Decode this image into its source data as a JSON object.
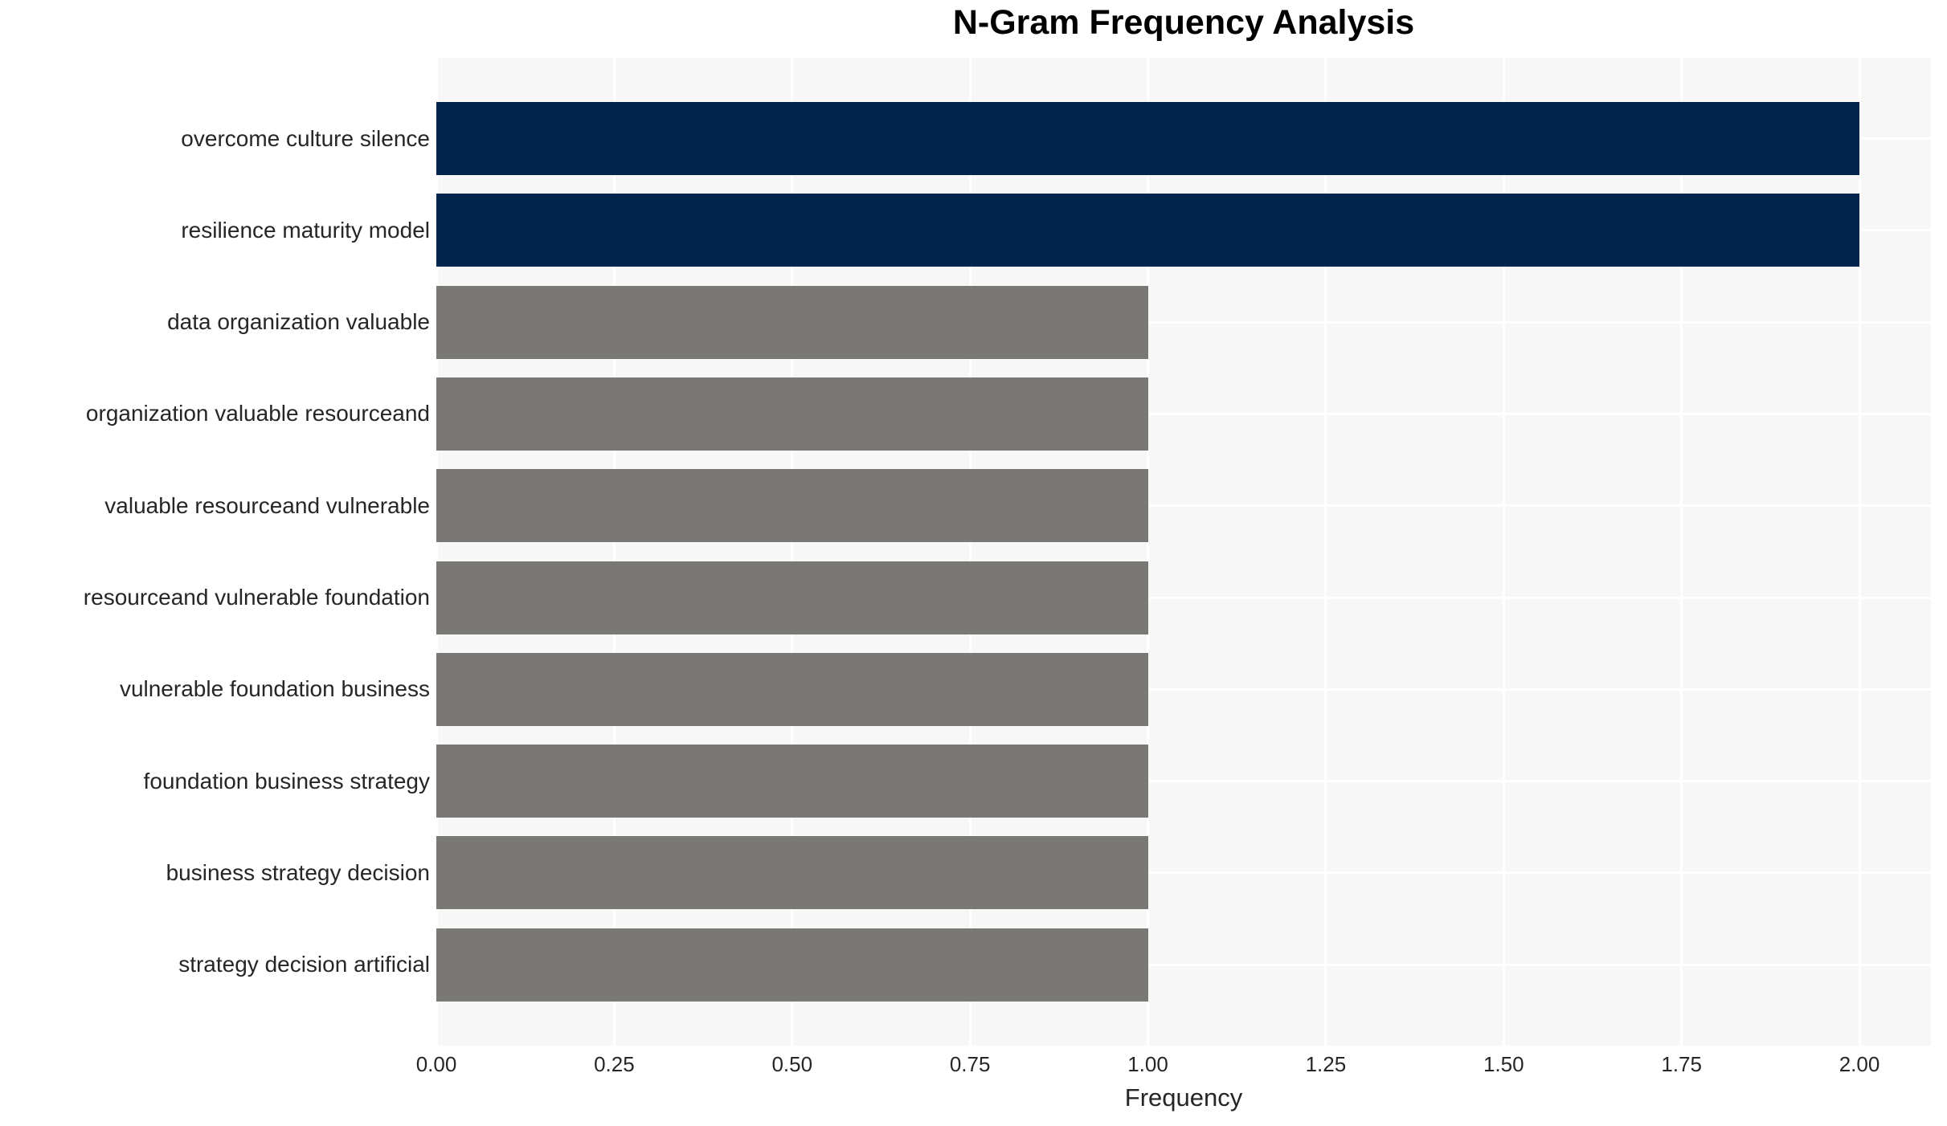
{
  "chart_data": {
    "type": "bar",
    "orientation": "horizontal",
    "title": "N-Gram Frequency Analysis",
    "xlabel": "Frequency",
    "ylabel": "",
    "categories": [
      "overcome culture silence",
      "resilience maturity model",
      "data organization valuable",
      "organization valuable resourceand",
      "valuable resourceand vulnerable",
      "resourceand vulnerable foundation",
      "vulnerable foundation business",
      "foundation business strategy",
      "business strategy decision",
      "strategy decision artificial"
    ],
    "values": [
      2,
      2,
      1,
      1,
      1,
      1,
      1,
      1,
      1,
      1
    ],
    "bar_colors": [
      "#02254D",
      "#02254D",
      "#7A7875",
      "#7A7875",
      "#7A7875",
      "#7A7875",
      "#7A7875",
      "#7A7875",
      "#7A7875",
      "#7A7875"
    ],
    "xlim": [
      0,
      2.1
    ],
    "xticks": [
      0,
      0.25,
      0.5,
      0.75,
      1.0,
      1.25,
      1.5,
      1.75,
      2.0
    ],
    "xtick_label_format": "2-decimals",
    "legend": "none",
    "grid": {
      "vertical_major": true,
      "horizontal_at_category_centers": true,
      "color": "#FFFFFF"
    },
    "colors": {
      "highlight_bar": "#02254D",
      "default_bar": "#7A7875",
      "panel_background": "#F7F7F7",
      "page_background": "#FFFFFF",
      "tick_text": "#262626",
      "title_text": "#000000"
    }
  }
}
